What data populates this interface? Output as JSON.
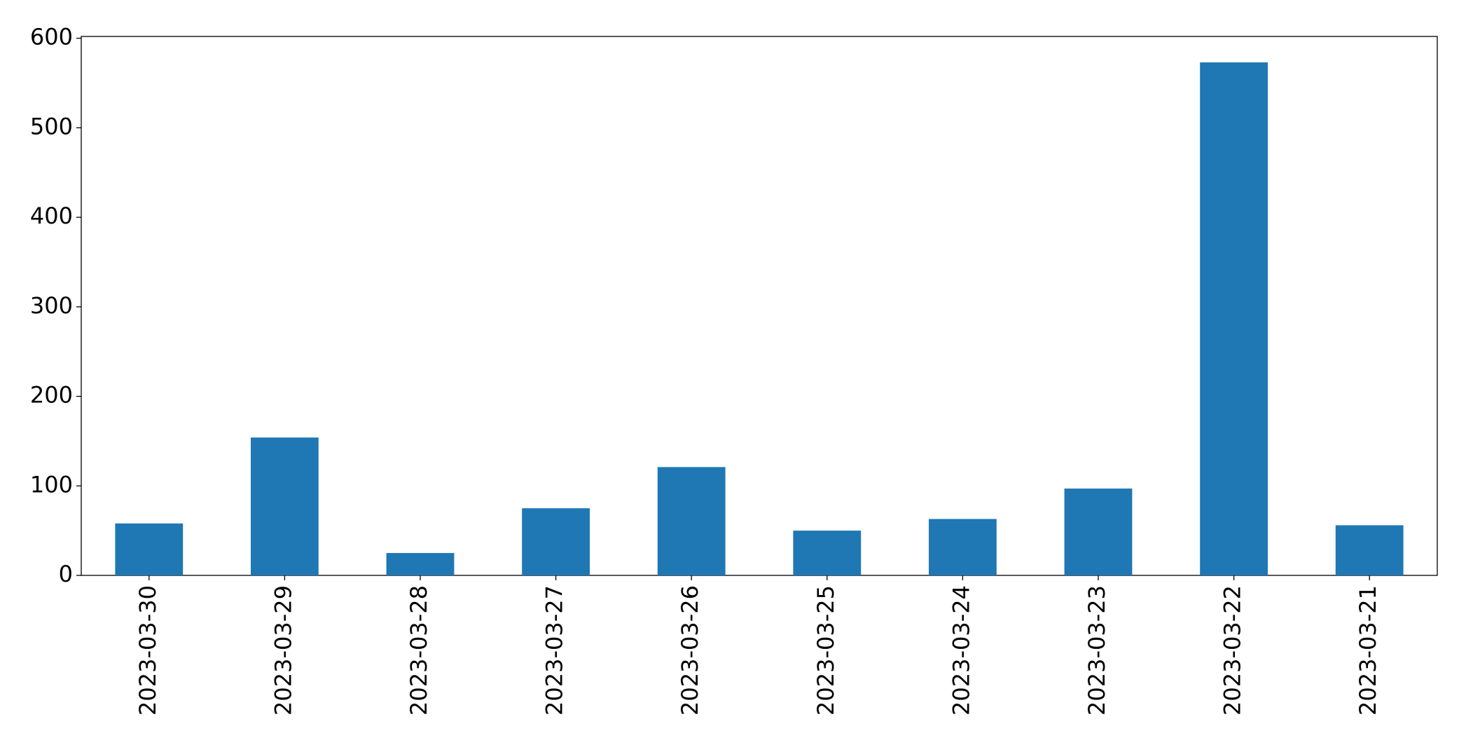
{
  "chart_data": {
    "type": "bar",
    "categories": [
      "2023-03-30",
      "2023-03-29",
      "2023-03-28",
      "2023-03-27",
      "2023-03-26",
      "2023-03-25",
      "2023-03-24",
      "2023-03-23",
      "2023-03-22",
      "2023-03-21"
    ],
    "values": [
      58,
      154,
      25,
      75,
      121,
      50,
      63,
      97,
      573,
      56
    ],
    "color": "#1f77b4",
    "ylim": [
      0,
      602
    ],
    "yticks": [
      0,
      100,
      200,
      300,
      400,
      500,
      600
    ],
    "grid": false
  }
}
